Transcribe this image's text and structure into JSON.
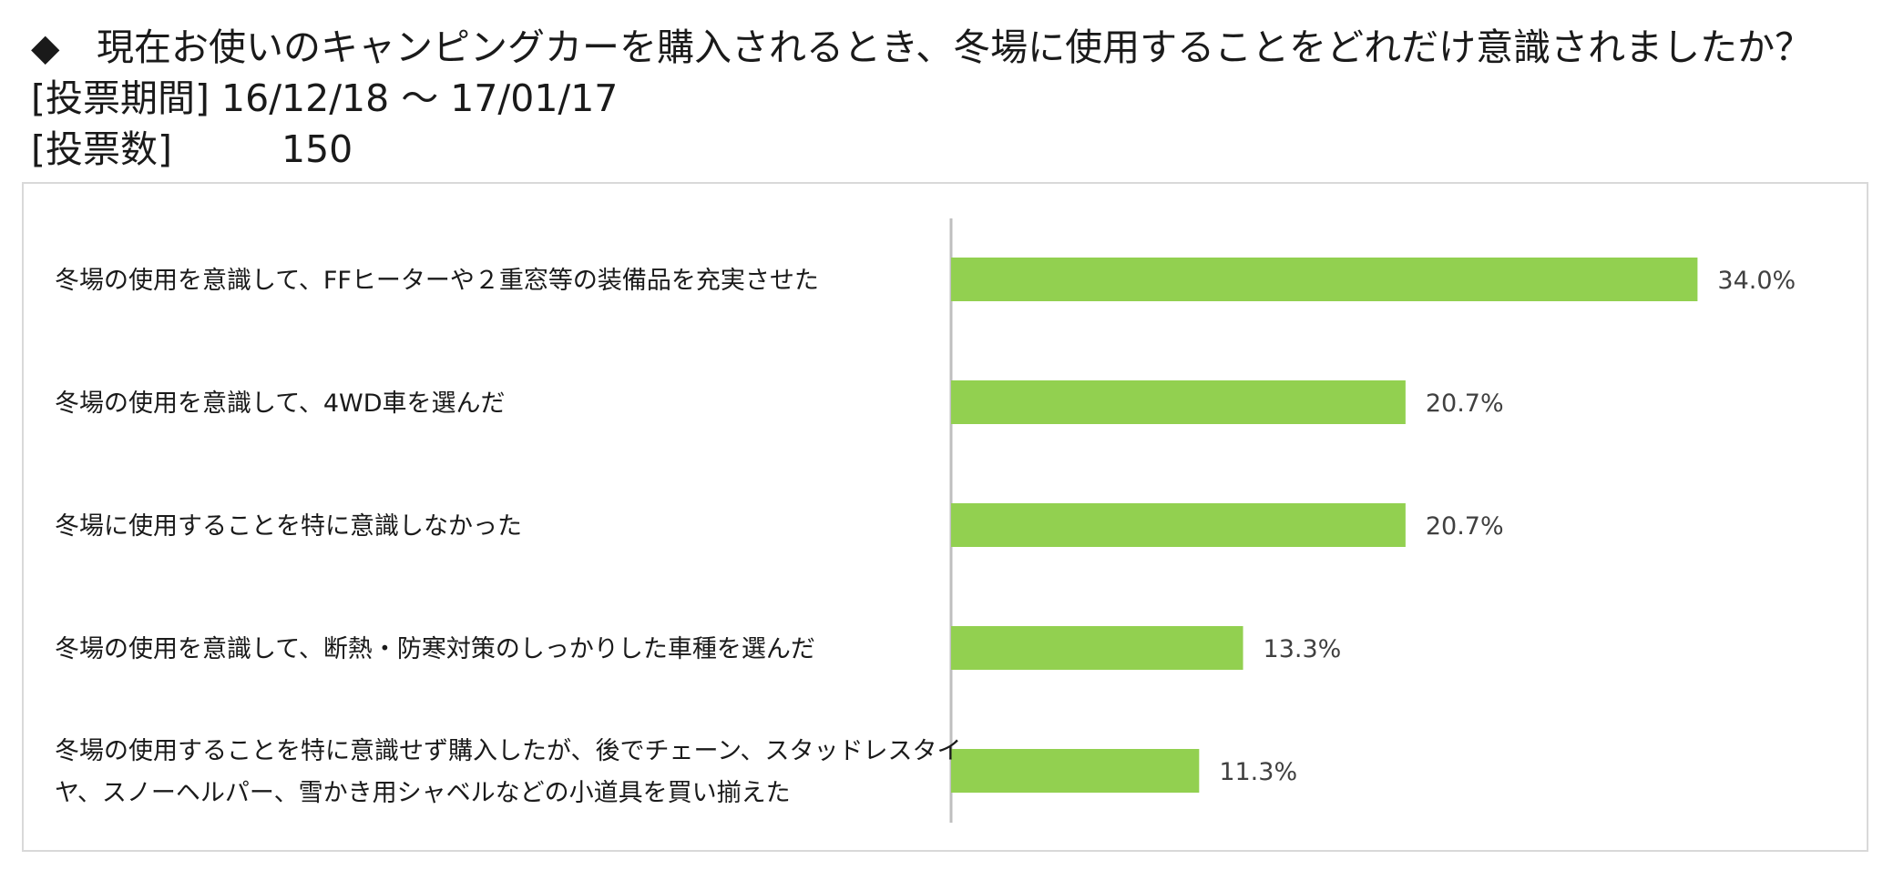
{
  "header": {
    "question_mark": "◆",
    "question": "現在お使いのキャンピングカーを購入されるとき、冬場に使用することをどれだけ意識されましたか？",
    "period_label": "[投票期間]",
    "period_value": "16/12/18 ～ 17/01/17",
    "count_label": "[投票数]",
    "count_value": "150"
  },
  "chart_data": {
    "type": "bar",
    "orientation": "horizontal",
    "categories": [
      [
        "冬場の使用を意識して、FFヒーターや２重窓等の装備品を充実させた"
      ],
      [
        "冬場の使用を意識して、4WD車を選んだ"
      ],
      [
        "冬場に使用することを特に意識しなかった"
      ],
      [
        "冬場の使用を意識して、断熱・防寒対策のしっかりした車種を選んだ"
      ],
      [
        "冬場の使用することを特に意識せず購入したが、後でチェーン、スタッドレスタイ",
        "ヤ、スノーヘルパー、雪かき用シャベルなどの小道具を買い揃えた"
      ]
    ],
    "values": [
      34.0,
      20.7,
      20.7,
      13.3,
      11.3
    ],
    "value_labels": [
      "34.0%",
      "20.7%",
      "20.7%",
      "13.3%",
      "11.3%"
    ],
    "xlim": [
      0,
      40
    ],
    "bar_color": "#92d050",
    "axis_color": "#bfbfbf",
    "grid": false
  }
}
